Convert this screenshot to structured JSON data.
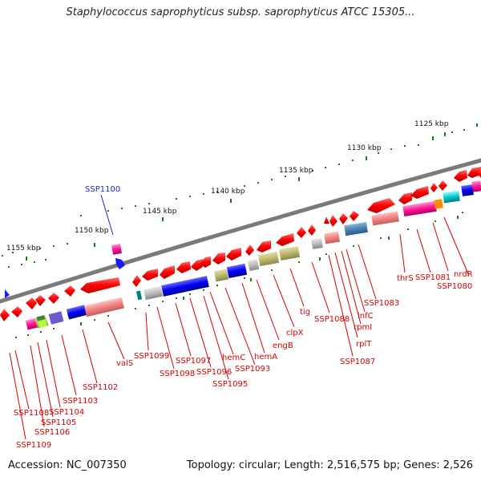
{
  "title": "Staphylococcus saprophyticus subsp. saprophyticus ATCC 15305...",
  "accession": "Accession: NC_007350",
  "topology": "Topology: circular; Length: 2,516,575 bp; Genes: 2,526",
  "colors": {
    "label": "#d40000",
    "highlight": "#2222cc",
    "backbone": "#7a7a7a",
    "tick": "#1a7a1a"
  },
  "scale_labels": [
    "1125 kbp",
    "1130 kbp",
    "1135 kbp",
    "1140 kbp",
    "1145 kbp",
    "1150 kbp",
    "1155 kbp"
  ],
  "highlight_gene": "SSP1100",
  "gene_labels": [
    "thrS",
    "SSP1081",
    "nrdR",
    "SSP1080",
    "SSP1083",
    "infC",
    "rpmI",
    "rplT",
    "SSP1087",
    "SSP1088",
    "tig",
    "clpX",
    "engB",
    "hemA",
    "SSP1093",
    "hemC",
    "SSP1095",
    "SSP1096",
    "SSP1097",
    "SSP1098",
    "SSP1099",
    "valS",
    "SSP1102",
    "SSP1103",
    "SSP1104",
    "SSP1105",
    "SSP1106",
    "SSP1108",
    "SSP1109"
  ]
}
